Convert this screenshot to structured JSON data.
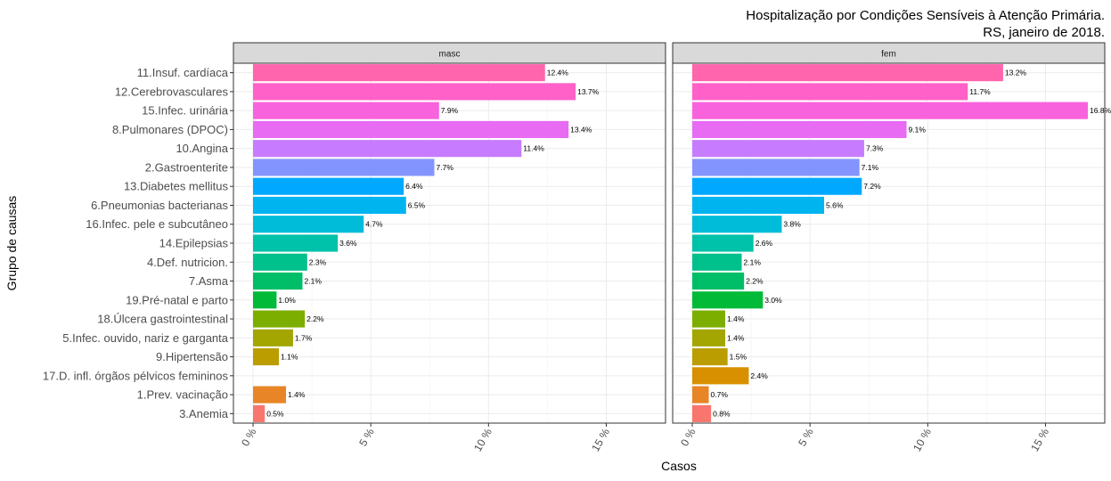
{
  "chart_data": {
    "type": "bar",
    "orientation": "horizontal",
    "title": "Hospitalização por Condições Sensíveis à Atenção Primária.",
    "subtitle": "RS, janeiro de 2018.",
    "xlabel": "Casos",
    "ylabel": "Grupo de causas",
    "xlim": [
      0,
      17.5
    ],
    "xticks": [
      0,
      5,
      10,
      15
    ],
    "xtick_labels": [
      "0 %",
      "5 %",
      "10 %",
      "15 %"
    ],
    "grid": true,
    "legend": "none",
    "categories": [
      "11.Insuf. cardíaca",
      "12.Cerebrovasculares",
      "15.Infec. urinária",
      "8.Pulmonares (DPOC)",
      "10.Angina",
      "2.Gastroenterite",
      "13.Diabetes mellitus",
      "6.Pneumonias bacterianas",
      "16.Infec. pele e subcutâneo",
      "14.Epilepsias",
      "4.Def. nutricion.",
      "7.Asma",
      "19.Pré-natal e parto",
      "18.Úlcera gastrointestinal",
      "5.Infec. ouvido, nariz e garganta",
      "9.Hipertensão",
      "17.D. infl. órgãos pélvicos femininos",
      "1.Prev. vacinação",
      "3.Anemia"
    ],
    "colors": [
      "#FF65AC",
      "#FF61C9",
      "#F962DD",
      "#E76BF3",
      "#C77CFF",
      "#8494FF",
      "#00A9FF",
      "#00B4EF",
      "#00BCD8",
      "#00C1A9",
      "#00C08B",
      "#00BE67",
      "#00BA38",
      "#7CAE00",
      "#A3A500",
      "#BB9D00",
      "#D89000",
      "#E88526",
      "#F8766D"
    ],
    "series": [
      {
        "name": "masc",
        "values": [
          12.4,
          13.7,
          7.9,
          13.4,
          11.4,
          7.7,
          6.4,
          6.5,
          4.7,
          3.6,
          2.3,
          2.1,
          1.0,
          2.2,
          1.7,
          1.1,
          null,
          1.4,
          0.5
        ],
        "labels": [
          "12.4%",
          "13.7%",
          "7.9%",
          "13.4%",
          "11.4%",
          "7.7%",
          "6.4%",
          "6.5%",
          "4.7%",
          "3.6%",
          "2.3%",
          "2.1%",
          "1.0%",
          "2.2%",
          "1.7%",
          "1.1%",
          "",
          "1.4%",
          "0.5%"
        ]
      },
      {
        "name": "fem",
        "values": [
          13.2,
          11.7,
          16.8,
          9.1,
          7.3,
          7.1,
          7.2,
          5.6,
          3.8,
          2.6,
          2.1,
          2.2,
          3.0,
          1.4,
          1.4,
          1.5,
          2.4,
          0.7,
          0.8
        ],
        "labels": [
          "13.2%",
          "11.7%",
          "16.8%",
          "9.1%",
          "7.3%",
          "7.1%",
          "7.2%",
          "5.6%",
          "3.8%",
          "2.6%",
          "2.1%",
          "2.2%",
          "3.0%",
          "1.4%",
          "1.4%",
          "1.5%",
          "2.4%",
          "0.7%",
          "0.8%"
        ]
      }
    ]
  }
}
